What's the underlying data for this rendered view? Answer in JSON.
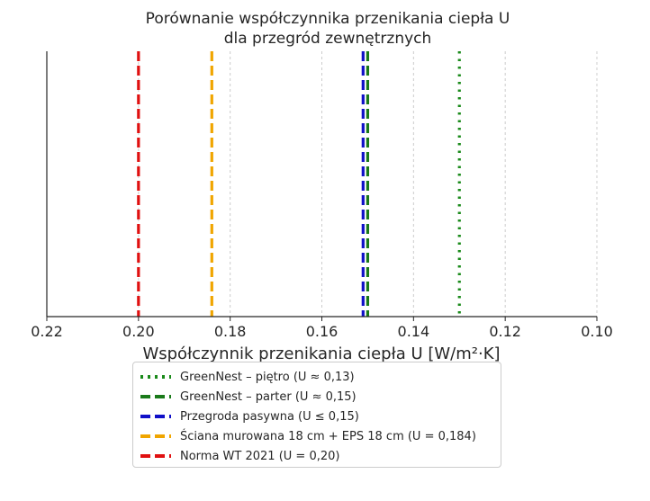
{
  "chart_data": {
    "type": "line",
    "orientation": "vertical-reference-lines",
    "title": "Porównanie współczynnika przenikania ciepła U\ndla przegród zewnętrznych",
    "xlabel": "Współczynnik przenikania ciepła U [W/m²·K]",
    "ylabel": "",
    "xlim": [
      0.22,
      0.1
    ],
    "x_axis_inverted": true,
    "xticks": [
      "0.22",
      "0.20",
      "0.18",
      "0.16",
      "0.14",
      "0.12",
      "0.10"
    ],
    "xtick_values": [
      0.22,
      0.2,
      0.18,
      0.16,
      0.14,
      0.12,
      0.1
    ],
    "grid": "x-dotted",
    "legend_position": "below",
    "series": [
      {
        "name": "GreenNest – piętro (U ≈ 0,13)",
        "x": 0.13,
        "color": "#1a8a1a",
        "style": "dotted"
      },
      {
        "name": "GreenNest – parter (U ≈ 0,15)",
        "x": 0.15,
        "color": "#1a7a1a",
        "style": "dashed"
      },
      {
        "name": "Przegroda pasywna (U ≤ 0,15)",
        "x": 0.151,
        "color": "#1010c8",
        "style": "dashed"
      },
      {
        "name": "Ściana murowana 18 cm + EPS 18 cm (U = 0,184)",
        "x": 0.184,
        "color": "#f0a500",
        "style": "dashed"
      },
      {
        "name": "Norma WT 2021 (U = 0,20)",
        "x": 0.2,
        "color": "#e01010",
        "style": "dashed"
      }
    ]
  }
}
